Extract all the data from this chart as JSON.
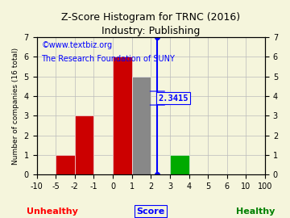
{
  "title": "Z-Score Histogram for TRNC (2016)",
  "subtitle": "Industry: Publishing",
  "watermark1": "©www.textbiz.org",
  "watermark2": "The Research Foundation of SUNY",
  "ylabel": "Number of companies (16 total)",
  "xlabel_center": "Score",
  "xlabel_left": "Unhealthy",
  "xlabel_right": "Healthy",
  "zscore_label": "2.3415",
  "bin_labels": [
    "-10",
    "-5",
    "-2",
    "-1",
    "0",
    "1",
    "2",
    "3",
    "4",
    "5",
    "6",
    "10",
    "100"
  ],
  "bar_heights": [
    0,
    1,
    3,
    0,
    6,
    5,
    0,
    1,
    0,
    0,
    0,
    0
  ],
  "bar_colors": [
    "#cc0000",
    "#cc0000",
    "#cc0000",
    "#cc0000",
    "#cc0000",
    "#888888",
    "#888888",
    "#00aa00",
    "#00aa00",
    "#00aa00",
    "#00aa00",
    "#00aa00"
  ],
  "ylim": [
    0,
    7
  ],
  "yticks": [
    0,
    1,
    2,
    3,
    4,
    5,
    6,
    7
  ],
  "background_color": "#f5f5dc",
  "grid_color": "#bbbbbb",
  "title_fontsize": 9,
  "watermark_fontsize": 7,
  "tick_fontsize": 7,
  "label_fontsize": 8
}
